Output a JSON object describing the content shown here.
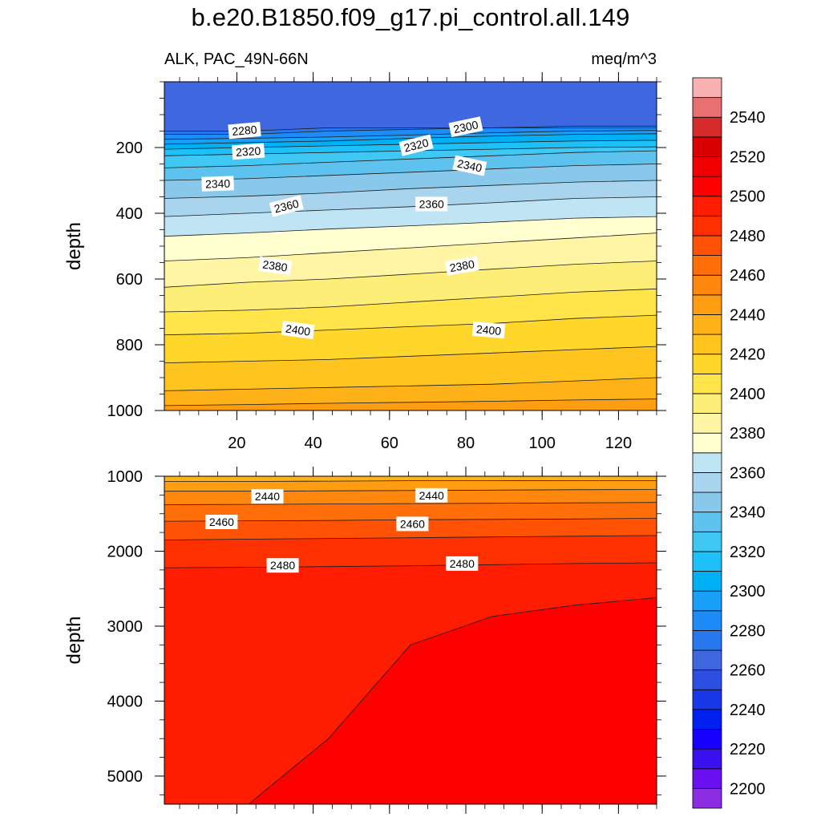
{
  "chart_data": {
    "type": "contour",
    "title": "b.e20.B1850.f09_g17.pi_control.all.149",
    "variable_label": "ALK, PAC_49N-66N",
    "units_label": "meq/m^3",
    "x_axis": {
      "range": [
        1,
        130
      ],
      "ticks": [
        20,
        40,
        60,
        80,
        100,
        120
      ]
    },
    "colorbar": {
      "levels": [
        2200,
        2210,
        2220,
        2230,
        2240,
        2250,
        2260,
        2270,
        2280,
        2290,
        2300,
        2310,
        2320,
        2330,
        2340,
        2350,
        2360,
        2370,
        2380,
        2390,
        2400,
        2410,
        2420,
        2430,
        2440,
        2450,
        2460,
        2470,
        2480,
        2490,
        2500,
        2510,
        2520,
        2530,
        2540,
        2550
      ],
      "colors": [
        "#8b2be2",
        "#6a0ff0",
        "#3a10ee",
        "#1800ff",
        "#0020f0",
        "#1838e8",
        "#2d4fe4",
        "#3f68e0",
        "#2778ee",
        "#1e8cf8",
        "#18a0f8",
        "#00b0f5",
        "#1ec0f8",
        "#40c8f4",
        "#5dc2ee",
        "#88c8ea",
        "#a8d4ee",
        "#bfe4f4",
        "#ffffd0",
        "#fff5a5",
        "#fdee78",
        "#ffe54a",
        "#ffd62a",
        "#ffc51e",
        "#ffb218",
        "#ff9d12",
        "#ff870e",
        "#ff6e08",
        "#ff5204",
        "#ff3000",
        "#ff1c00",
        "#ff0000",
        "#f00000",
        "#d80000",
        "#d62a2a",
        "#e87070",
        "#f8b0b0"
      ],
      "tick_labels": [
        "2200",
        "2220",
        "2240",
        "2260",
        "2280",
        "2300",
        "2320",
        "2340",
        "2360",
        "2380",
        "2400",
        "2420",
        "2440",
        "2460",
        "2480",
        "2500",
        "2520",
        "2540"
      ]
    },
    "panels": [
      {
        "name": "upper",
        "ylabel": "depth",
        "y_range": [
          0,
          1000
        ],
        "y_ticks": [
          200,
          400,
          600,
          800,
          1000
        ],
        "contours": [
          {
            "level": 2270,
            "depth": [
              150,
              150,
              140,
              140,
              140,
              140,
              140
            ]
          },
          {
            "level": 2280,
            "depth": [
              160,
              160,
              150,
              145,
              140,
              135,
              135
            ]
          },
          {
            "level": 2290,
            "depth": [
              175,
              172,
              168,
              162,
              155,
              150,
              148
            ]
          },
          {
            "level": 2300,
            "depth": [
              190,
              185,
              180,
              172,
              165,
              160,
              158
            ]
          },
          {
            "level": 2310,
            "depth": [
              205,
              200,
              195,
              190,
              185,
              180,
              178
            ]
          },
          {
            "level": 2320,
            "depth": [
              225,
              220,
              215,
              210,
              205,
              200,
              198
            ]
          },
          {
            "level": 2330,
            "depth": [
              262,
              255,
              245,
              235,
              225,
              215,
              210
            ]
          },
          {
            "level": 2340,
            "depth": [
              300,
              295,
              285,
              275,
              265,
              255,
              250
            ]
          },
          {
            "level": 2350,
            "depth": [
              355,
              348,
              338,
              325,
              315,
              305,
              300
            ]
          },
          {
            "level": 2360,
            "depth": [
              410,
              400,
              390,
              380,
              368,
              355,
              350
            ]
          },
          {
            "level": 2370,
            "depth": [
              470,
              460,
              448,
              438,
              427,
              415,
              410
            ]
          },
          {
            "level": 2380,
            "depth": [
              545,
              535,
              520,
              505,
              490,
              475,
              460
            ]
          },
          {
            "level": 2390,
            "depth": [
              625,
              610,
              600,
              585,
              570,
              555,
              545
            ]
          },
          {
            "level": 2400,
            "depth": [
              700,
              695,
              685,
              670,
              655,
              640,
              630
            ]
          },
          {
            "level": 2410,
            "depth": [
              770,
              765,
              755,
              745,
              735,
              720,
              710
            ]
          },
          {
            "level": 2420,
            "depth": [
              855,
              850,
              845,
              835,
              825,
              815,
              805
            ]
          },
          {
            "level": 2430,
            "depth": [
              940,
              935,
              930,
              925,
              920,
              910,
              900
            ]
          },
          {
            "level": 2440,
            "depth": [
              985,
              982,
              978,
              975,
              972,
              968,
              965
            ]
          }
        ],
        "labels": [
          {
            "text": "2280",
            "x": 22,
            "depth": 148,
            "angle": -5
          },
          {
            "text": "2320",
            "x": 23,
            "depth": 212,
            "angle": -4
          },
          {
            "text": "2340",
            "x": 15,
            "depth": 310,
            "angle": -2
          },
          {
            "text": "2360",
            "x": 33,
            "depth": 378,
            "angle": -14
          },
          {
            "text": "2380",
            "x": 30,
            "depth": 560,
            "angle": 8
          },
          {
            "text": "2400",
            "x": 36,
            "depth": 755,
            "angle": 8
          },
          {
            "text": "2320",
            "x": 67,
            "depth": 193,
            "angle": -14
          },
          {
            "text": "2300",
            "x": 80,
            "depth": 137,
            "angle": -12
          },
          {
            "text": "2340",
            "x": 81,
            "depth": 255,
            "angle": 12
          },
          {
            "text": "2360",
            "x": 71,
            "depth": 372,
            "angle": 0
          },
          {
            "text": "2380",
            "x": 79,
            "depth": 560,
            "angle": -10
          },
          {
            "text": "2400",
            "x": 86,
            "depth": 755,
            "angle": 5
          }
        ]
      },
      {
        "name": "lower",
        "ylabel": "depth",
        "y_range": [
          1000,
          5375
        ],
        "y_ticks": [
          1000,
          2000,
          3000,
          4000,
          5000
        ],
        "contours": [
          {
            "level": 2440,
            "depth": [
              1070,
              1070,
              1065,
              1060,
              1060,
              1058,
              1058
            ]
          },
          {
            "level": 2450,
            "depth": [
              1200,
              1200,
              1195,
              1190,
              1185,
              1180,
              1178
            ]
          },
          {
            "level": 2460,
            "depth": [
              1380,
              1375,
              1370,
              1365,
              1360,
              1355,
              1350
            ]
          },
          {
            "level": 2470,
            "depth": [
              1600,
              1595,
              1590,
              1580,
              1575,
              1570,
              1560
            ]
          },
          {
            "level": 2480,
            "depth": [
              1850,
              1840,
              1830,
              1820,
              1810,
              1800,
              1790
            ]
          },
          {
            "level": 2490,
            "depth": [
              2220,
              2215,
              2205,
              2195,
              2180,
              2165,
              2155
            ]
          },
          {
            "level": 2500,
            "depth": [
              5400,
              5400,
              4500,
              3250,
              2870,
              2720,
              2620
            ]
          }
        ],
        "labels": [
          {
            "text": "2440",
            "x": 28,
            "depth": 1270,
            "angle": 0
          },
          {
            "text": "2460",
            "x": 16,
            "depth": 1610,
            "angle": 0
          },
          {
            "text": "2480",
            "x": 32,
            "depth": 2190,
            "angle": 0
          },
          {
            "text": "2440",
            "x": 71,
            "depth": 1255,
            "angle": 0
          },
          {
            "text": "2460",
            "x": 66,
            "depth": 1635,
            "angle": 0
          },
          {
            "text": "2480",
            "x": 79,
            "depth": 2165,
            "angle": 0
          }
        ]
      }
    ]
  }
}
